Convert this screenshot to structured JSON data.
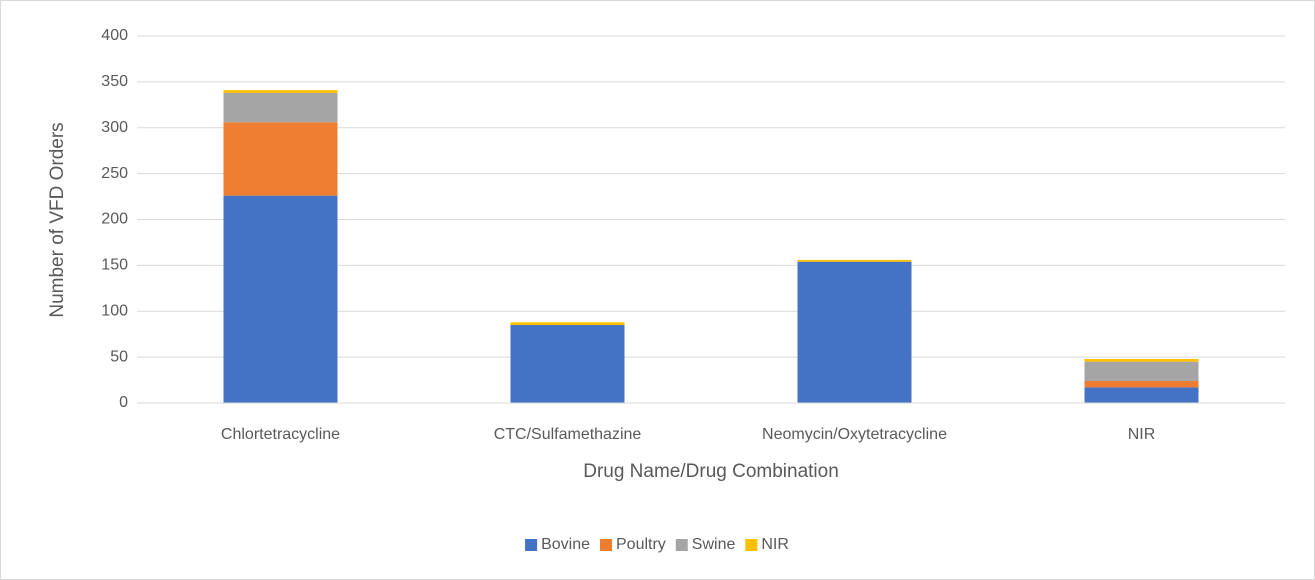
{
  "chart_data": {
    "type": "stacked_bar",
    "x_label": "Drug Name/Drug Combination",
    "y_label": "Number of VFD Orders",
    "categories": [
      "Chlortetracycline",
      "CTC/Sulfamethazine",
      "Neomycin/Oxytetracycline",
      "NIR"
    ],
    "series": [
      {
        "name": "Bovine",
        "color": "#4472c4",
        "values": [
          226,
          85,
          154,
          17
        ]
      },
      {
        "name": "Poultry",
        "color": "#ed7d31",
        "values": [
          80,
          0,
          0,
          7
        ]
      },
      {
        "name": "Swine",
        "color": "#a5a5a5",
        "values": [
          32,
          0,
          0,
          21
        ]
      },
      {
        "name": "NIR",
        "color": "#ffc000",
        "values": [
          3,
          3,
          2,
          3
        ]
      }
    ],
    "ylim": [
      0,
      400
    ],
    "yticks": [
      0,
      50,
      100,
      150,
      200,
      250,
      300,
      350,
      400
    ],
    "grid": true,
    "legend": "bottom"
  }
}
